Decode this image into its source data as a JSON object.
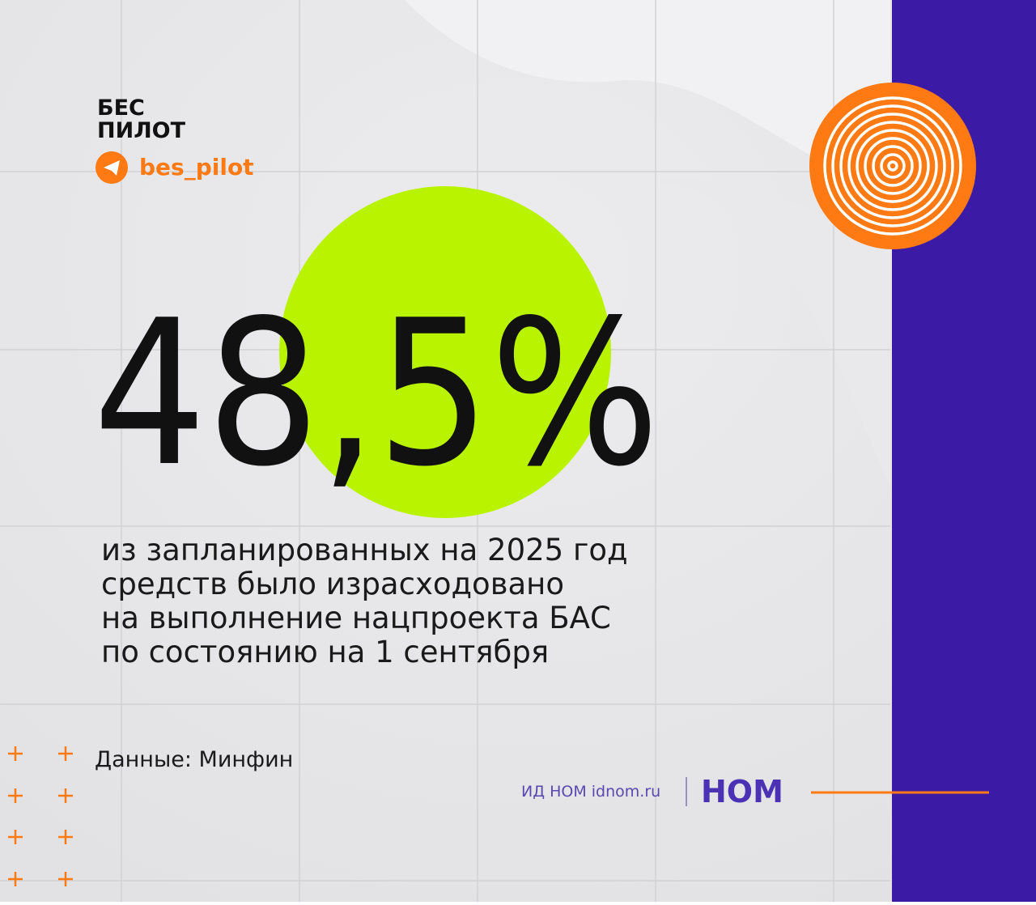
{
  "brand": {
    "line1": "БЕС",
    "line2": "ПИЛОТ",
    "handle": "bes_pilot"
  },
  "headline": {
    "stat": "48,5%",
    "lines": [
      "из запланированных на 2025 год",
      "средств было израсходовано",
      "на выполнение нацпроекта БАС",
      "по состоянию на 1 сентября"
    ]
  },
  "source": "Данные: Минфин",
  "footer": {
    "publisher": "ИД НОМ idnom.ru",
    "logo": "НОМ"
  }
}
